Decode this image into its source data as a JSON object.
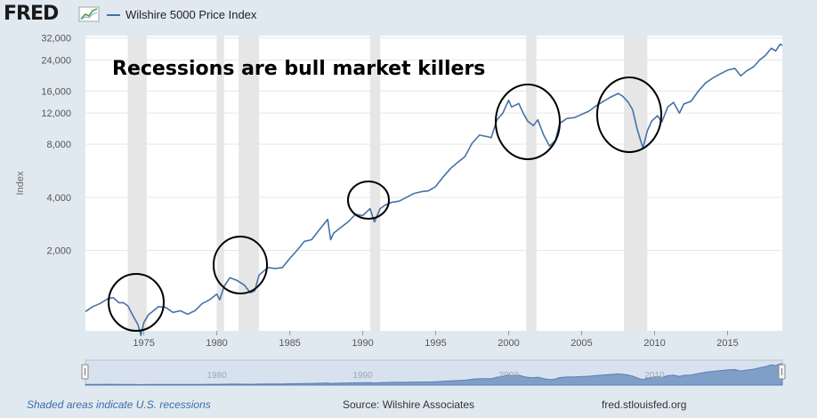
{
  "header": {
    "logo_text": "FRED",
    "logo_icon": "chart-line-icon",
    "legend_label": "Wilshire 5000 Price Index"
  },
  "annotation": "Recessions are bull market killers",
  "footer": {
    "note": "Shaded areas indicate U.S. recessions",
    "source": "Source: Wilshire Associates",
    "site": "fred.stlouisfed.org"
  },
  "colors": {
    "series": "#4572a7",
    "recession": "#e6e6e6",
    "frame": "#e1e9f0"
  },
  "chart_data": {
    "type": "line",
    "ylabel": "Index",
    "yscale": "log",
    "xlim": [
      1971.0,
      2018.75
    ],
    "ylim": [
      700,
      33000
    ],
    "y_ticks": [
      2000,
      4000,
      8000,
      12000,
      16000,
      24000,
      32000
    ],
    "y_tick_labels": [
      "2,000",
      "4,000",
      "8,000",
      "12,000",
      "16,000",
      "24,000",
      "32,000"
    ],
    "x_ticks": [
      1975,
      1980,
      1985,
      1990,
      1995,
      2000,
      2005,
      2010,
      2015
    ],
    "x_tick_labels": [
      "1975",
      "1980",
      "1985",
      "1990",
      "1995",
      "2000",
      "2005",
      "2010",
      "2015"
    ],
    "navigator_labels": [
      "1980",
      "1990",
      "2000",
      "2010"
    ],
    "grid": true,
    "recessions": [
      [
        1973.9,
        1975.2
      ],
      [
        1980.0,
        1980.5
      ],
      [
        1981.5,
        1982.9
      ],
      [
        1990.5,
        1991.2
      ],
      [
        2001.2,
        2001.9
      ],
      [
        2007.9,
        2009.5
      ]
    ],
    "series": [
      {
        "name": "Wilshire 5000 Price Index",
        "x": [
          1971.0,
          1971.5,
          1972.0,
          1972.5,
          1972.9,
          1973.3,
          1973.6,
          1973.9,
          1974.3,
          1974.6,
          1974.8,
          1975.0,
          1975.3,
          1975.6,
          1976.0,
          1976.5,
          1977.0,
          1977.5,
          1978.0,
          1978.5,
          1979.0,
          1979.5,
          1980.0,
          1980.2,
          1980.5,
          1980.9,
          1981.4,
          1981.9,
          1982.3,
          1982.6,
          1982.9,
          1983.5,
          1984.0,
          1984.5,
          1985.0,
          1985.5,
          1986.0,
          1986.5,
          1987.0,
          1987.6,
          1987.8,
          1988.0,
          1988.5,
          1989.0,
          1989.5,
          1990.0,
          1990.5,
          1990.8,
          1991.2,
          1991.5,
          1992.0,
          1992.5,
          1993.0,
          1993.5,
          1994.0,
          1994.5,
          1995.0,
          1995.5,
          1996.0,
          1996.5,
          1997.0,
          1997.5,
          1998.0,
          1998.6,
          1998.8,
          1999.2,
          1999.6,
          2000.0,
          2000.2,
          2000.7,
          2001.0,
          2001.3,
          2001.7,
          2002.0,
          2002.4,
          2002.8,
          2003.2,
          2003.5,
          2004.0,
          2004.5,
          2005.0,
          2005.5,
          2006.0,
          2006.5,
          2007.0,
          2007.5,
          2007.8,
          2008.2,
          2008.5,
          2008.8,
          2009.2,
          2009.5,
          2009.8,
          2010.2,
          2010.5,
          2010.9,
          2011.3,
          2011.7,
          2012.0,
          2012.5,
          2013.0,
          2013.5,
          2014.0,
          2014.5,
          2015.0,
          2015.5,
          2015.9,
          2016.3,
          2016.8,
          2017.2,
          2017.6,
          2018.0,
          2018.3,
          2018.6,
          2018.75
        ],
        "values": [
          900,
          960,
          1000,
          1060,
          1080,
          1010,
          1010,
          970,
          840,
          760,
          660,
          780,
          860,
          900,
          960,
          950,
          890,
          910,
          870,
          910,
          1000,
          1050,
          1130,
          1050,
          1250,
          1400,
          1350,
          1270,
          1150,
          1180,
          1450,
          1600,
          1580,
          1600,
          1800,
          2000,
          2250,
          2300,
          2600,
          3000,
          2300,
          2500,
          2700,
          2900,
          3200,
          3150,
          3450,
          2900,
          3450,
          3600,
          3750,
          3800,
          4000,
          4200,
          4300,
          4350,
          4600,
          5200,
          5800,
          6300,
          6800,
          8100,
          9000,
          8800,
          8700,
          11000,
          12000,
          14200,
          13000,
          13600,
          12000,
          10800,
          10200,
          11000,
          9000,
          7800,
          8400,
          10500,
          11200,
          11300,
          11800,
          12300,
          13200,
          14000,
          14800,
          15500,
          15000,
          13800,
          12500,
          9800,
          7600,
          9500,
          10800,
          11600,
          10700,
          13000,
          13800,
          12000,
          13500,
          14000,
          16000,
          17800,
          19000,
          20000,
          21000,
          21500,
          19500,
          20800,
          22000,
          24000,
          25500,
          28000,
          27000,
          29500,
          29000
        ]
      }
    ]
  }
}
